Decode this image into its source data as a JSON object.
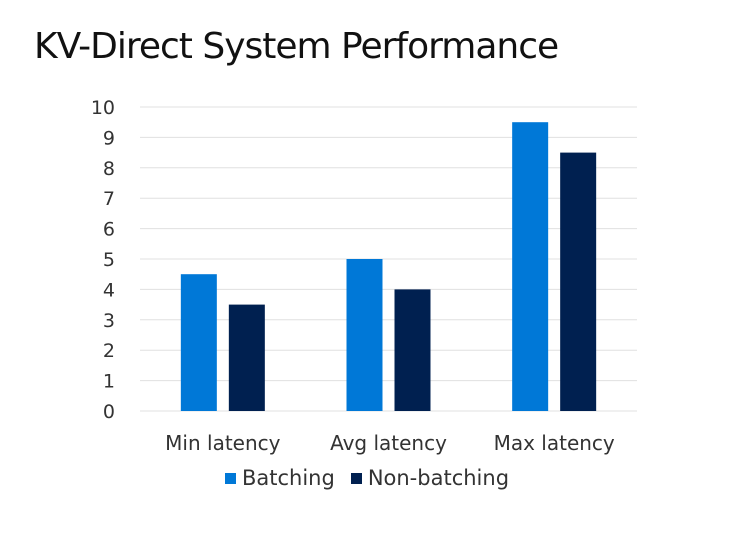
{
  "title": "KV-Direct System Performance",
  "colors": {
    "batching": "#0078d7",
    "non_batching": "#002050",
    "grid": "#e0e0e0"
  },
  "chart_data": {
    "type": "bar",
    "title": "KV-Direct System Performance",
    "categories": [
      "Min latency",
      "Avg latency",
      "Max latency"
    ],
    "series": [
      {
        "name": "Batching",
        "values": [
          4.5,
          5,
          9.5
        ]
      },
      {
        "name": "Non-batching",
        "values": [
          3.5,
          4,
          8.5
        ]
      }
    ],
    "yticks": [
      "0",
      "1",
      "2",
      "3",
      "4",
      "5",
      "6",
      "7",
      "8",
      "9",
      "10"
    ],
    "ylim": [
      0,
      10
    ],
    "grid": true,
    "legend": "bottom"
  }
}
